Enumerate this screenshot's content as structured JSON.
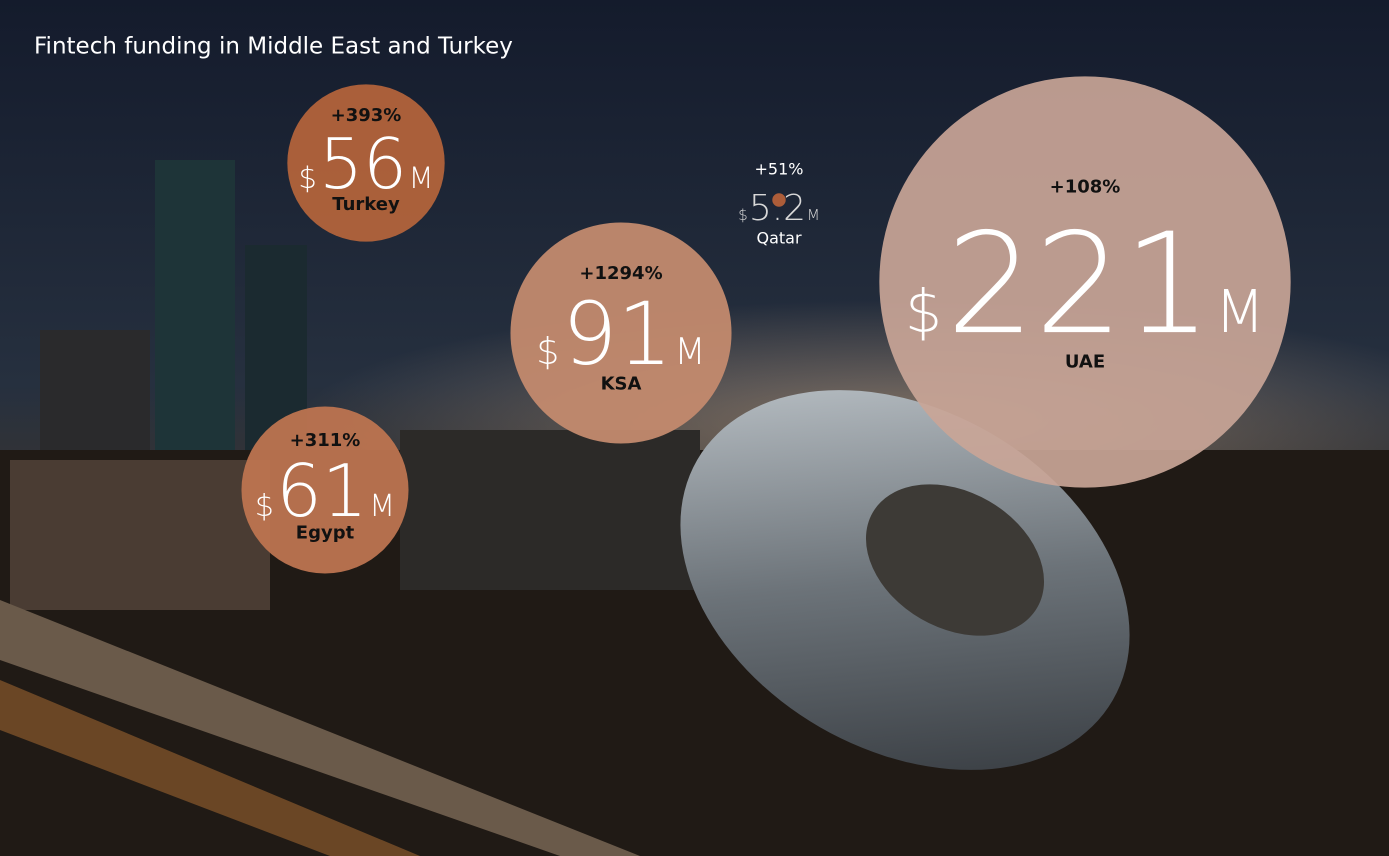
{
  "chart_data": {
    "type": "bubble",
    "title": "Fintech funding in Middle East and Turkey",
    "currency_prefix": "$",
    "unit_suffix": "M",
    "categories": [
      "Turkey",
      "Egypt",
      "KSA",
      "Qatar",
      "UAE"
    ],
    "values": [
      56,
      61,
      91,
      5.2,
      221
    ],
    "growth_labels": [
      "+393%",
      "+311%",
      "+1294%",
      "+51%",
      "+108%"
    ],
    "colors": [
      "#b2633b",
      "#bd7450",
      "#c38a6e",
      "#b5603a",
      "#c9a597"
    ]
  }
}
